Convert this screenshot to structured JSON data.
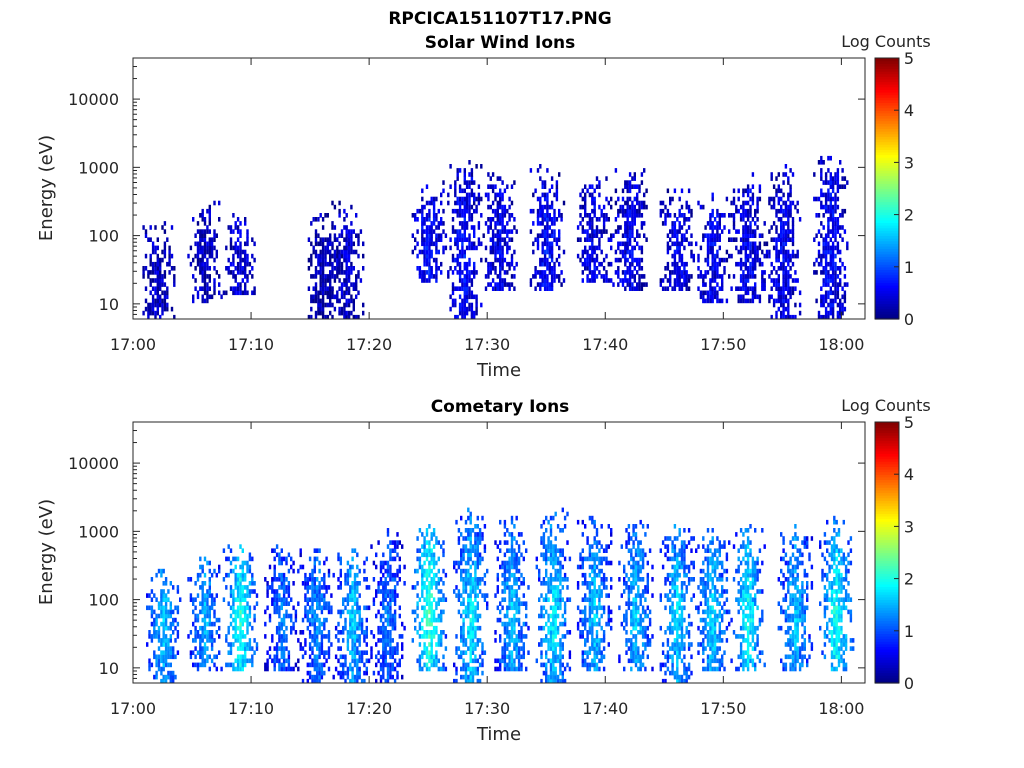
{
  "figure_title": "RPCICA151107T17.PNG",
  "chart_data": [
    {
      "type": "heatmap",
      "title": "Solar Wind Ions",
      "xlabel": "Time",
      "ylabel": "Energy (eV)",
      "x_ticks": [
        "17:00",
        "17:10",
        "17:20",
        "17:30",
        "17:40",
        "17:50",
        "18:00"
      ],
      "x_range": [
        "17:00",
        "18:02"
      ],
      "y_scale": "log",
      "y_ticks": [
        10,
        100,
        1000,
        10000
      ],
      "y_range": [
        6,
        40000
      ],
      "colorbar": {
        "title": "Log Counts",
        "ticks": [
          0,
          1,
          2,
          3,
          4,
          5
        ],
        "range": [
          0,
          5
        ],
        "colormap": "jet"
      },
      "activity_bursts": [
        {
          "t": "17:02",
          "emin": 6,
          "emax": 150,
          "level": 0.3
        },
        {
          "t": "17:06",
          "emin": 10,
          "emax": 300,
          "level": 0.3
        },
        {
          "t": "17:09",
          "emin": 12,
          "emax": 200,
          "level": 0.4
        },
        {
          "t": "17:16",
          "emin": 6,
          "emax": 200,
          "level": 0.2
        },
        {
          "t": "17:18",
          "emin": 6,
          "emax": 300,
          "level": 0.3
        },
        {
          "t": "17:25",
          "emin": 20,
          "emax": 600,
          "level": 0.6
        },
        {
          "t": "17:28",
          "emin": 6,
          "emax": 1200,
          "level": 0.6
        },
        {
          "t": "17:31",
          "emin": 15,
          "emax": 800,
          "level": 0.5
        },
        {
          "t": "17:35",
          "emin": 15,
          "emax": 1000,
          "level": 0.6
        },
        {
          "t": "17:39",
          "emin": 20,
          "emax": 700,
          "level": 0.5
        },
        {
          "t": "17:42",
          "emin": 15,
          "emax": 1000,
          "level": 0.5
        },
        {
          "t": "17:46",
          "emin": 15,
          "emax": 500,
          "level": 0.5
        },
        {
          "t": "17:49",
          "emin": 10,
          "emax": 400,
          "level": 0.5
        },
        {
          "t": "17:52",
          "emin": 10,
          "emax": 800,
          "level": 0.5
        },
        {
          "t": "17:55",
          "emin": 6,
          "emax": 1000,
          "level": 0.5
        },
        {
          "t": "17:59",
          "emin": 6,
          "emax": 1500,
          "level": 0.6
        }
      ]
    },
    {
      "type": "heatmap",
      "title": "Cometary Ions",
      "xlabel": "Time",
      "ylabel": "Energy (eV)",
      "x_ticks": [
        "17:00",
        "17:10",
        "17:20",
        "17:30",
        "17:40",
        "17:50",
        "18:00"
      ],
      "x_range": [
        "17:00",
        "18:02"
      ],
      "y_scale": "log",
      "y_ticks": [
        10,
        100,
        1000,
        10000
      ],
      "y_range": [
        6,
        40000
      ],
      "colorbar": {
        "title": "Log Counts",
        "ticks": [
          0,
          1,
          2,
          3,
          4,
          5
        ],
        "range": [
          0,
          5
        ],
        "colormap": "jet"
      },
      "activity_bursts": [
        {
          "t": "17:02.5",
          "emin": 6,
          "emax": 250,
          "level": 1.6
        },
        {
          "t": "17:06",
          "emin": 8,
          "emax": 400,
          "level": 1.5
        },
        {
          "t": "17:09",
          "emin": 8,
          "emax": 700,
          "level": 2.0
        },
        {
          "t": "17:12.5",
          "emin": 8,
          "emax": 600,
          "level": 1.2
        },
        {
          "t": "17:15.5",
          "emin": 6,
          "emax": 500,
          "level": 1.3
        },
        {
          "t": "17:18.5",
          "emin": 6,
          "emax": 500,
          "level": 1.6
        },
        {
          "t": "17:21.5",
          "emin": 6,
          "emax": 1000,
          "level": 1.2
        },
        {
          "t": "17:25",
          "emin": 8,
          "emax": 1200,
          "level": 2.2
        },
        {
          "t": "17:28.5",
          "emin": 6,
          "emax": 2000,
          "level": 1.8
        },
        {
          "t": "17:32",
          "emin": 8,
          "emax": 1500,
          "level": 1.6
        },
        {
          "t": "17:35.5",
          "emin": 6,
          "emax": 2000,
          "level": 1.8
        },
        {
          "t": "17:39",
          "emin": 8,
          "emax": 1500,
          "level": 1.6
        },
        {
          "t": "17:42.5",
          "emin": 8,
          "emax": 1500,
          "level": 1.6
        },
        {
          "t": "17:46",
          "emin": 6,
          "emax": 1200,
          "level": 1.7
        },
        {
          "t": "17:49",
          "emin": 8,
          "emax": 1200,
          "level": 1.7
        },
        {
          "t": "17:52",
          "emin": 8,
          "emax": 1200,
          "level": 1.9
        },
        {
          "t": "17:56",
          "emin": 8,
          "emax": 1200,
          "level": 1.6
        },
        {
          "t": "17:59.5",
          "emin": 8,
          "emax": 1500,
          "level": 2.0
        }
      ]
    }
  ]
}
